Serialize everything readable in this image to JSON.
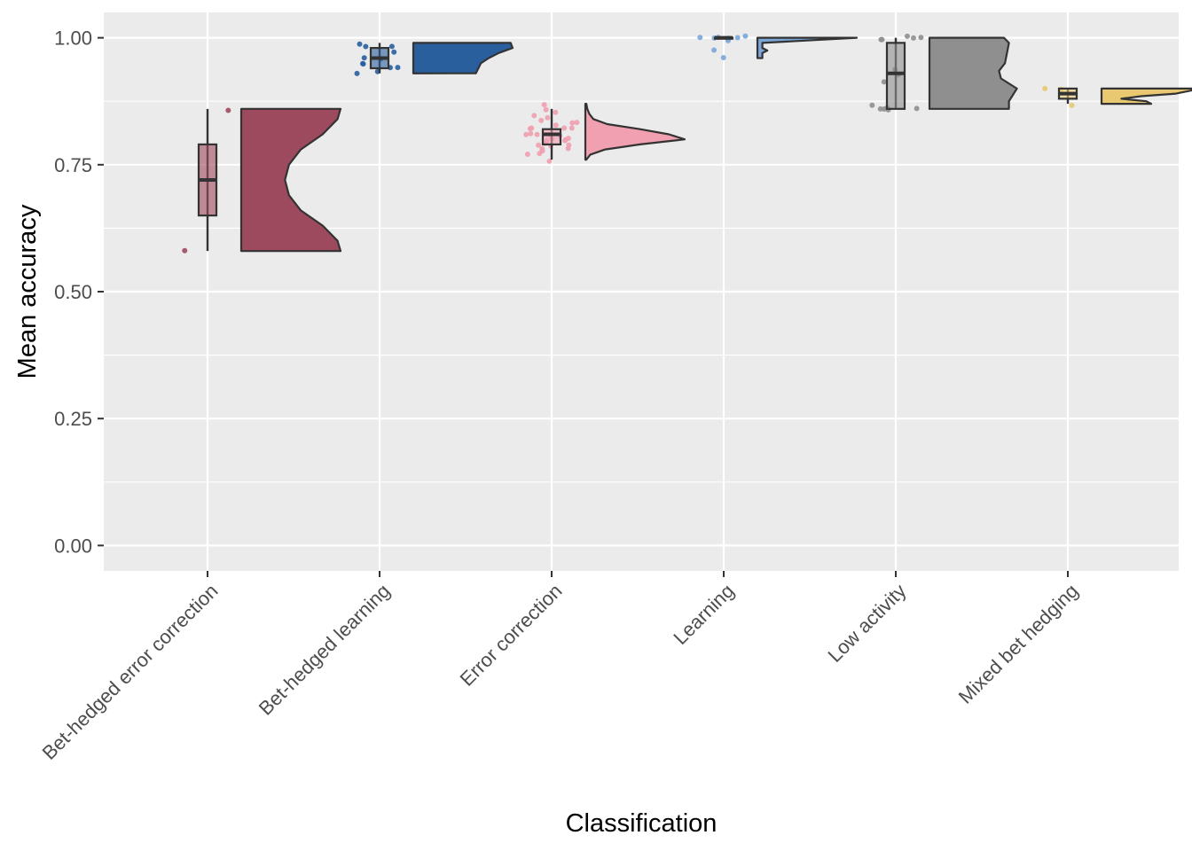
{
  "chart_data": {
    "type": "raincloud",
    "xlabel": "Classification",
    "ylabel": "Mean accuracy",
    "ylim": [
      -0.05,
      1.05
    ],
    "yticks": [
      {
        "value": 0.0,
        "label": "0.00"
      },
      {
        "value": 0.25,
        "label": "0.25"
      },
      {
        "value": 0.5,
        "label": "0.50"
      },
      {
        "value": 0.75,
        "label": "0.75"
      },
      {
        "value": 1.0,
        "label": "1.00"
      }
    ],
    "grid": true,
    "panel_background": "#ebebeb",
    "groups": [
      {
        "category": "Bet-hedged error correction",
        "color": "#9e4a5e",
        "box": {
          "min": 0.58,
          "q1": 0.65,
          "median": 0.72,
          "q3": 0.79,
          "max": 0.86
        },
        "points": [
          0.86,
          0.58
        ],
        "density": [
          [
            0.58,
            1.0
          ],
          [
            0.6,
            0.97
          ],
          [
            0.63,
            0.82
          ],
          [
            0.66,
            0.6
          ],
          [
            0.69,
            0.48
          ],
          [
            0.72,
            0.44
          ],
          [
            0.75,
            0.48
          ],
          [
            0.78,
            0.6
          ],
          [
            0.81,
            0.82
          ],
          [
            0.84,
            0.97
          ],
          [
            0.86,
            1.0
          ]
        ]
      },
      {
        "category": "Bet-hedged learning",
        "color": "#2a5f9e",
        "box": {
          "min": 0.93,
          "q1": 0.94,
          "median": 0.96,
          "q3": 0.98,
          "max": 0.99
        },
        "points": [
          0.99,
          0.98,
          0.98,
          0.97,
          0.96,
          0.96,
          0.95,
          0.95,
          0.94,
          0.94,
          0.93,
          0.93
        ],
        "density": [
          [
            0.93,
            0.63
          ],
          [
            0.95,
            0.68
          ],
          [
            0.96,
            0.76
          ],
          [
            0.97,
            0.86
          ],
          [
            0.98,
            1.0
          ],
          [
            0.99,
            0.98
          ]
        ]
      },
      {
        "category": "Error correction",
        "color": "#f0a0b0",
        "box": {
          "min": 0.76,
          "q1": 0.79,
          "median": 0.81,
          "q3": 0.82,
          "max": 0.86
        },
        "points": [
          0.87,
          0.86,
          0.85,
          0.85,
          0.84,
          0.84,
          0.83,
          0.83,
          0.83,
          0.82,
          0.82,
          0.82,
          0.82,
          0.81,
          0.81,
          0.81,
          0.81,
          0.81,
          0.8,
          0.8,
          0.8,
          0.8,
          0.8,
          0.79,
          0.79,
          0.79,
          0.79,
          0.78,
          0.78,
          0.78,
          0.77,
          0.77,
          0.76
        ],
        "density": [
          [
            0.76,
            0.01
          ],
          [
            0.77,
            0.05
          ],
          [
            0.78,
            0.2
          ],
          [
            0.79,
            0.55
          ],
          [
            0.8,
            1.0
          ],
          [
            0.81,
            0.84
          ],
          [
            0.82,
            0.55
          ],
          [
            0.83,
            0.22
          ],
          [
            0.84,
            0.08
          ],
          [
            0.85,
            0.04
          ],
          [
            0.86,
            0.02
          ],
          [
            0.87,
            0.01
          ]
        ]
      },
      {
        "category": "Learning",
        "color": "#7aa6d8",
        "box": {
          "min": 1.0,
          "q1": 1.0,
          "median": 1.0,
          "q3": 1.0,
          "max": 1.0
        },
        "points": [
          1.0,
          1.0,
          1.0,
          1.0,
          1.0,
          1.0,
          1.0,
          0.995,
          0.975,
          0.96
        ],
        "density": [
          [
            0.96,
            0.05
          ],
          [
            0.97,
            0.05
          ],
          [
            0.975,
            0.1
          ],
          [
            0.98,
            0.05
          ],
          [
            0.99,
            0.05
          ],
          [
            1.0,
            1.0
          ]
        ]
      },
      {
        "category": "Low activity",
        "color": "#8f8f8f",
        "box": {
          "min": 0.86,
          "q1": 0.86,
          "median": 0.93,
          "q3": 0.99,
          "max": 1.0
        },
        "points": [
          1.0,
          1.0,
          1.0,
          1.0,
          1.0,
          0.94,
          0.93,
          0.91,
          0.87,
          0.86,
          0.86,
          0.86,
          0.86,
          0.86
        ],
        "density": [
          [
            0.86,
            0.8
          ],
          [
            0.875,
            0.8
          ],
          [
            0.9,
            0.88
          ],
          [
            0.92,
            0.72
          ],
          [
            0.935,
            0.7
          ],
          [
            0.95,
            0.76
          ],
          [
            0.97,
            0.78
          ],
          [
            0.99,
            0.8
          ],
          [
            1.0,
            0.75
          ]
        ]
      },
      {
        "category": "Mixed bet hedging",
        "color": "#e8c870",
        "box": {
          "min": 0.87,
          "q1": 0.88,
          "median": 0.89,
          "q3": 0.9,
          "max": 0.9
        },
        "points": [
          0.9,
          0.9,
          0.87
        ],
        "density": [
          [
            0.87,
            0.5
          ],
          [
            0.875,
            0.45
          ],
          [
            0.88,
            0.2
          ],
          [
            0.885,
            0.4
          ],
          [
            0.89,
            0.75
          ],
          [
            0.9,
            1.0
          ]
        ]
      }
    ]
  }
}
